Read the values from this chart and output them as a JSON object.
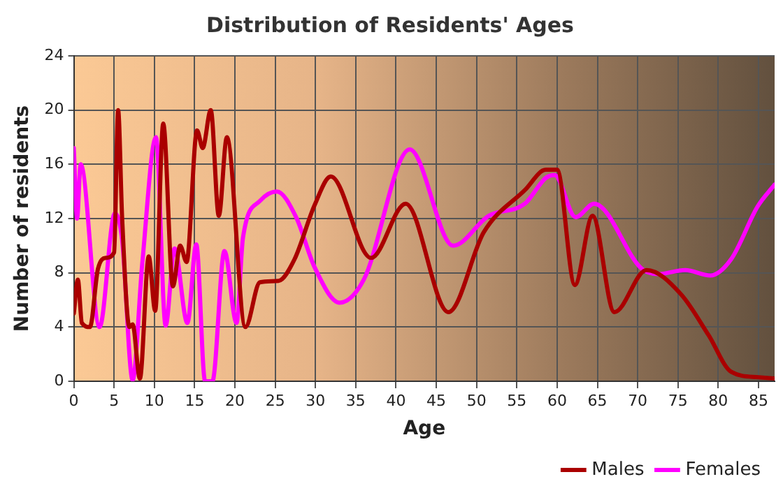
{
  "chart_data": {
    "type": "line",
    "title": "Distribution of Residents' Ages",
    "xlabel": "Age",
    "ylabel": "Number of residents",
    "xlim": [
      0,
      87
    ],
    "xticks": [
      0,
      5,
      10,
      15,
      20,
      25,
      30,
      35,
      40,
      45,
      50,
      55,
      60,
      65,
      70,
      75,
      80,
      85
    ],
    "ylim": [
      0,
      24
    ],
    "yticks": [
      0,
      4,
      8,
      12,
      16,
      20,
      24
    ],
    "grid": true,
    "legend": "bottom right",
    "marker": "none",
    "line_style": "solid",
    "series": [
      {
        "name": "Males",
        "color": "#aa0000",
        "x": [
          0,
          0.5,
          1,
          2,
          3,
          4,
          5,
          5.5,
          6,
          6.9,
          7.3,
          8.2,
          9.3,
          10.1,
          11.1,
          12.3,
          13.2,
          14,
          15.3,
          16,
          17,
          18,
          19,
          21.3,
          23.1,
          25.4,
          27.4,
          29.9,
          31.9,
          36.9,
          41.2,
          46.5,
          50.9,
          56,
          58.6,
          60,
          62.2,
          64.4,
          67.1,
          71.1,
          75.4,
          78.8,
          81.6,
          85,
          87
        ],
        "values": [
          5,
          7.5,
          4.3,
          4,
          8.3,
          9.1,
          9.5,
          20,
          12,
          4,
          4.2,
          0.2,
          9.2,
          5.2,
          19,
          7,
          10,
          8.8,
          18.5,
          17.2,
          20,
          12.2,
          18,
          4,
          7.3,
          7.4,
          9,
          13,
          15.1,
          9.1,
          13.1,
          5.1,
          11,
          14.1,
          15.6,
          15.6,
          7.1,
          12.2,
          5.1,
          8.2,
          6.4,
          3.4,
          0.7,
          0.3,
          0.2
        ]
      },
      {
        "name": "Females",
        "color": "#ff00ff",
        "x": [
          0,
          0.4,
          0.85,
          3.2,
          5.1,
          6,
          7.3,
          8.5,
          10.2,
          11.4,
          12.5,
          14.1,
          15.2,
          16.3,
          17.2,
          18.7,
          20.2,
          21,
          23.1,
          25.2,
          27.6,
          29.9,
          33,
          36,
          41.7,
          47.1,
          51.5,
          56,
          58.6,
          59.7,
          62.3,
          64.6,
          70.5,
          72.5,
          75.9,
          79,
          81.6,
          84.9,
          87
        ],
        "values": [
          17.2,
          12,
          16,
          4,
          12.4,
          10.4,
          0.1,
          8.7,
          18,
          4.1,
          9.8,
          4.3,
          10.1,
          0,
          0,
          9.6,
          4.3,
          10.6,
          13.3,
          14,
          12.1,
          8.4,
          5.8,
          7.5,
          17.1,
          10,
          12.2,
          13.1,
          15,
          15.2,
          12.1,
          13.1,
          8.3,
          7.9,
          8.2,
          7.8,
          9,
          12.9,
          14.5
        ]
      }
    ]
  }
}
